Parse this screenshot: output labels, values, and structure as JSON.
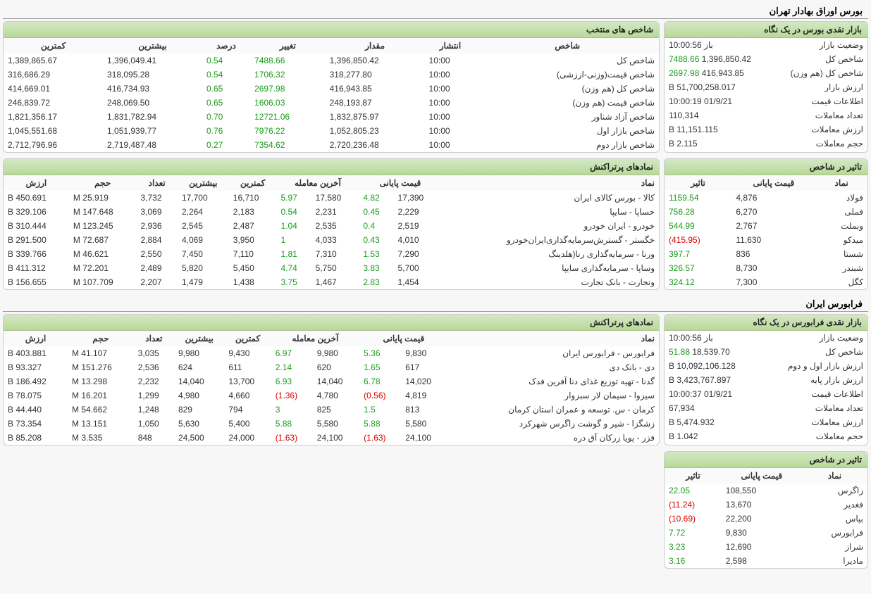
{
  "titles": {
    "tse": "بورس اوراق بهادار تهران",
    "ifb": "فرابورس ایران"
  },
  "headers": {
    "market_glance_tse": "بازار نقدی بورس در یک نگاه",
    "selected_indices": "شاخص های منتخب",
    "index_effect": "تاثیر در شاخص",
    "top_symbols": "نمادهای پرتراکنش",
    "market_glance_ifb": "بازار نقدی فرابورس در یک نگاه"
  },
  "cols": {
    "index": "شاخص",
    "publish": "انتشار",
    "value": "مقدار",
    "change": "تغییر",
    "percent": "درصد",
    "max": "بیشترین",
    "min": "کمترین",
    "symbol": "نماد",
    "final_price": "قیمت پایانی",
    "last_trade": "آخرین معامله",
    "count": "تعداد",
    "volume": "حجم",
    "arzesh": "ارزش",
    "effect": "تاثیر"
  },
  "tse_glance": [
    {
      "k": "وضعیت بازار",
      "v": "باز 10:00:56"
    },
    {
      "k": "شاخص کل",
      "v": "1,396,850.42",
      "extra": "7488.66",
      "extraClass": "pos"
    },
    {
      "k": "شاخص کل (هم وزن)",
      "v": "416,943.85",
      "extra": "2697.98",
      "extraClass": "pos"
    },
    {
      "k": "ارزش بازار",
      "v": "51,700,258.017 B"
    },
    {
      "k": "اطلاعات قیمت",
      "v": "01/9/21 10:00:19"
    },
    {
      "k": "تعداد معاملات",
      "v": "110,314"
    },
    {
      "k": "ارزش معاملات",
      "v": "11,151.115 B"
    },
    {
      "k": "حجم معاملات",
      "v": "2.115 B"
    }
  ],
  "selected_indices": [
    {
      "name": "شاخص کل",
      "pub": "10:00",
      "val": "1,396,850.42",
      "chg": "7488.66",
      "pct": "0.54",
      "max": "1,396,049.41",
      "min": "1,389,865.67",
      "cls": "pos"
    },
    {
      "name": "شاخص قیمت(وزنی-ارزشی)",
      "pub": "10:00",
      "val": "318,277.80",
      "chg": "1706.32",
      "pct": "0.54",
      "max": "318,095.28",
      "min": "316,686.29",
      "cls": "pos"
    },
    {
      "name": "شاخص کل (هم وزن)",
      "pub": "10:00",
      "val": "416,943.85",
      "chg": "2697.98",
      "pct": "0.65",
      "max": "416,734.93",
      "min": "414,669.01",
      "cls": "pos"
    },
    {
      "name": "شاخص قیمت (هم وزن)",
      "pub": "10:00",
      "val": "248,193.87",
      "chg": "1606.03",
      "pct": "0.65",
      "max": "248,069.50",
      "min": "246,839.72",
      "cls": "pos"
    },
    {
      "name": "شاخص آزاد شناور",
      "pub": "10:00",
      "val": "1,832,875.97",
      "chg": "12721.06",
      "pct": "0.70",
      "max": "1,831,782.94",
      "min": "1,821,356.17",
      "cls": "pos"
    },
    {
      "name": "شاخص بازار اول",
      "pub": "10:00",
      "val": "1,052,805.23",
      "chg": "7976.22",
      "pct": "0.76",
      "max": "1,051,939.77",
      "min": "1,045,551.68",
      "cls": "pos"
    },
    {
      "name": "شاخص بازار دوم",
      "pub": "10:00",
      "val": "2,720,236.48",
      "chg": "7354.62",
      "pct": "0.27",
      "max": "2,719,487.48",
      "min": "2,712,796.96",
      "cls": "pos"
    }
  ],
  "tse_effect": [
    {
      "sym": "فولاد",
      "price": "4,876",
      "eff": "1159.54",
      "cls": "pos"
    },
    {
      "sym": "فملی",
      "price": "6,270",
      "eff": "756.28",
      "cls": "pos"
    },
    {
      "sym": "وبملت",
      "price": "2,767",
      "eff": "544.99",
      "cls": "pos"
    },
    {
      "sym": "میدکو",
      "price": "11,630",
      "eff": "(415.95)",
      "cls": "neg"
    },
    {
      "sym": "شستا",
      "price": "836",
      "eff": "397.7",
      "cls": "pos"
    },
    {
      "sym": "شبندر",
      "price": "8,730",
      "eff": "326.57",
      "cls": "pos"
    },
    {
      "sym": "کگل",
      "price": "7,300",
      "eff": "324.12",
      "cls": "pos"
    }
  ],
  "tse_top": [
    {
      "sym": "کالا - بورس کالای ایران",
      "fp": "17,390",
      "fpp": "4.82",
      "fpc": "pos",
      "lt": "17,580",
      "ltp": "5.97",
      "ltc": "pos",
      "min": "16,710",
      "max": "17,700",
      "cnt": "3,732",
      "vol": "25.919 M",
      "val": "450.691 B"
    },
    {
      "sym": "خساپا - سایپا",
      "fp": "2,229",
      "fpp": "0.45",
      "fpc": "pos",
      "lt": "2,231",
      "ltp": "0.54",
      "ltc": "pos",
      "min": "2,183",
      "max": "2,264",
      "cnt": "3,069",
      "vol": "147.648 M",
      "val": "329.106 B"
    },
    {
      "sym": "خودرو - ایران خودرو",
      "fp": "2,519",
      "fpp": "0.4",
      "fpc": "pos",
      "lt": "2,535",
      "ltp": "1.04",
      "ltc": "pos",
      "min": "2,487",
      "max": "2,545",
      "cnt": "2,936",
      "vol": "123.245 M",
      "val": "310.444 B"
    },
    {
      "sym": "خگستر - گسترش‌سرمایه‌گذاری‌ایران‌خودرو",
      "fp": "4,010",
      "fpp": "0.43",
      "fpc": "pos",
      "lt": "4,033",
      "ltp": "1",
      "ltc": "pos",
      "min": "3,950",
      "max": "4,069",
      "cnt": "2,884",
      "vol": "72.687 M",
      "val": "291.500 B"
    },
    {
      "sym": "ورنا - سرمایه‌گذاری رنا(هلدینگ",
      "fp": "7,290",
      "fpp": "1.53",
      "fpc": "pos",
      "lt": "7,310",
      "ltp": "1.81",
      "ltc": "pos",
      "min": "7,110",
      "max": "7,450",
      "cnt": "2,550",
      "vol": "46.621 M",
      "val": "339.766 B"
    },
    {
      "sym": "وساپا - سرمایه‌گذاری سایپا",
      "fp": "5,700",
      "fpp": "3.83",
      "fpc": "pos",
      "lt": "5,750",
      "ltp": "4.74",
      "ltc": "pos",
      "min": "5,450",
      "max": "5,820",
      "cnt": "2,489",
      "vol": "72.201 M",
      "val": "411.312 B"
    },
    {
      "sym": "وتجارت - بانک تجارت",
      "fp": "1,454",
      "fpp": "2.83",
      "fpc": "pos",
      "lt": "1,467",
      "ltp": "3.75",
      "ltc": "pos",
      "min": "1,438",
      "max": "1,479",
      "cnt": "2,207",
      "vol": "107.709 M",
      "val": "156.655 B"
    }
  ],
  "ifb_glance": [
    {
      "k": "وضعیت بازار",
      "v": "باز 10:00:56"
    },
    {
      "k": "شاخص کل",
      "v": "18,539.70",
      "extra": "51.88",
      "extraClass": "pos"
    },
    {
      "k": "ارزش بازار اول و دوم",
      "v": "10,092,106.128 B"
    },
    {
      "k": "ارزش بازار پایه",
      "v": "3,423,767.897 B"
    },
    {
      "k": "اطلاعات قیمت",
      "v": "01/9/21 10:00:37"
    },
    {
      "k": "تعداد معاملات",
      "v": "67,934"
    },
    {
      "k": "ارزش معاملات",
      "v": "5,474.932 B"
    },
    {
      "k": "حجم معاملات",
      "v": "1.042 B"
    }
  ],
  "ifb_top": [
    {
      "sym": "فرابورس - فرابورس ایران",
      "fp": "9,830",
      "fpp": "5.36",
      "fpc": "pos",
      "lt": "9,980",
      "ltp": "6.97",
      "ltc": "pos",
      "min": "9,430",
      "max": "9,980",
      "cnt": "3,035",
      "vol": "41.107 M",
      "val": "403.881 B"
    },
    {
      "sym": "دی - بانک دی",
      "fp": "617",
      "fpp": "1.65",
      "fpc": "pos",
      "lt": "620",
      "ltp": "2.14",
      "ltc": "pos",
      "min": "611",
      "max": "624",
      "cnt": "2,536",
      "vol": "151.276 M",
      "val": "93.327 B"
    },
    {
      "sym": "گدنا - تهیه توزیع غذای دنا آفرین فدک",
      "fp": "14,020",
      "fpp": "6.78",
      "fpc": "pos",
      "lt": "14,040",
      "ltp": "6.93",
      "ltc": "pos",
      "min": "13,700",
      "max": "14,040",
      "cnt": "2,232",
      "vol": "13.298 M",
      "val": "186.492 B"
    },
    {
      "sym": "سیزوا - سیمان لار سبزوار",
      "fp": "4,819",
      "fpp": "(0.56)",
      "fpc": "neg",
      "lt": "4,780",
      "ltp": "(1.36)",
      "ltc": "neg",
      "min": "4,660",
      "max": "4,980",
      "cnt": "1,299",
      "vol": "16.201 M",
      "val": "78.075 B"
    },
    {
      "sym": "کرمان - س. توسعه و عمران استان کرمان",
      "fp": "813",
      "fpp": "1.5",
      "fpc": "pos",
      "lt": "825",
      "ltp": "3",
      "ltc": "pos",
      "min": "794",
      "max": "829",
      "cnt": "1,248",
      "vol": "54.662 M",
      "val": "44.440 B"
    },
    {
      "sym": "زشگزا - شیر و گوشت زاگرس شهرکرد",
      "fp": "5,580",
      "fpp": "5.88",
      "fpc": "pos",
      "lt": "5,580",
      "ltp": "5.88",
      "ltc": "pos",
      "min": "5,400",
      "max": "5,630",
      "cnt": "1,050",
      "vol": "13.151 M",
      "val": "73.354 B"
    },
    {
      "sym": "فزر - پویا زرکان آق دره",
      "fp": "24,100",
      "fpp": "(1.63)",
      "fpc": "neg",
      "lt": "24,100",
      "ltp": "(1.63)",
      "ltc": "neg",
      "min": "24,000",
      "max": "24,500",
      "cnt": "848",
      "vol": "3.535 M",
      "val": "85.208 B"
    }
  ],
  "ifb_effect": [
    {
      "sym": "زاگرس",
      "price": "108,550",
      "eff": "22.05",
      "cls": "pos"
    },
    {
      "sym": "فغدیر",
      "price": "13,670",
      "eff": "(11.24)",
      "cls": "neg"
    },
    {
      "sym": "بپاس",
      "price": "22,200",
      "eff": "(10.69)",
      "cls": "neg"
    },
    {
      "sym": "فرابورس",
      "price": "9,830",
      "eff": "7.72",
      "cls": "pos"
    },
    {
      "sym": "شراز",
      "price": "12,690",
      "eff": "3.23",
      "cls": "pos"
    },
    {
      "sym": "مادیرا",
      "price": "2,598",
      "eff": "3.16",
      "cls": "pos"
    }
  ]
}
